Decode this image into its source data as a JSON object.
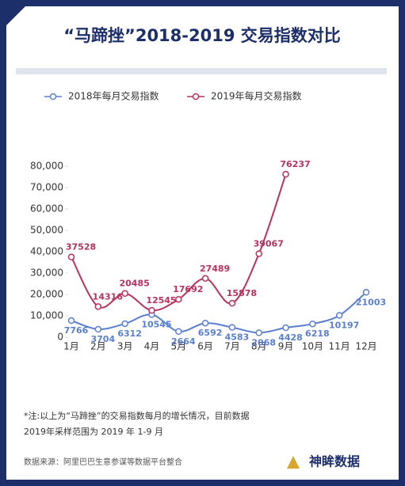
{
  "chart_data": {
    "type": "line",
    "title": "“马蹄挫”2018-2019 交易指数对比",
    "categories": [
      "1月",
      "2月",
      "3月",
      "4月",
      "5月",
      "6月",
      "7月",
      "8月",
      "9月",
      "10月",
      "11月",
      "12月"
    ],
    "series": [
      {
        "name": "2018年每月交易指数",
        "color": "#5b7fd0",
        "values": [
          7766,
          3704,
          6312,
          10545,
          2664,
          6592,
          4583,
          2068,
          4428,
          6218,
          10197,
          21003
        ]
      },
      {
        "name": "2019年每月交易指数",
        "color": "#b8325e",
        "values": [
          37528,
          14316,
          20485,
          12545,
          17692,
          27489,
          15878,
          39067,
          76237,
          null,
          null,
          null
        ]
      }
    ],
    "ylim": [
      0,
      80000
    ],
    "yticks": [
      0,
      {
        "value": 10000,
        "label": "10,000"
      },
      {
        "value": 20000,
        "label": "20,000"
      },
      {
        "value": 30000,
        "label": "30,000"
      },
      {
        "value": 40000,
        "label": "40,000"
      },
      {
        "value": 50000,
        "label": "50,000"
      },
      {
        "value": 60000,
        "label": "60,000"
      },
      {
        "value": 70000,
        "label": "70,000"
      },
      {
        "value": 80000,
        "label": "80,000"
      }
    ],
    "legend": "top-left",
    "note": [
      "*注:以上为“马蹄挫”的交易指数每月的增长情况，目前数据",
      "2019年采样范围为 2019 年 1-9 月"
    ],
    "source": "数据来源：阿里巴巴生意参谋等数据平台整合",
    "brand": "神眸数据"
  }
}
